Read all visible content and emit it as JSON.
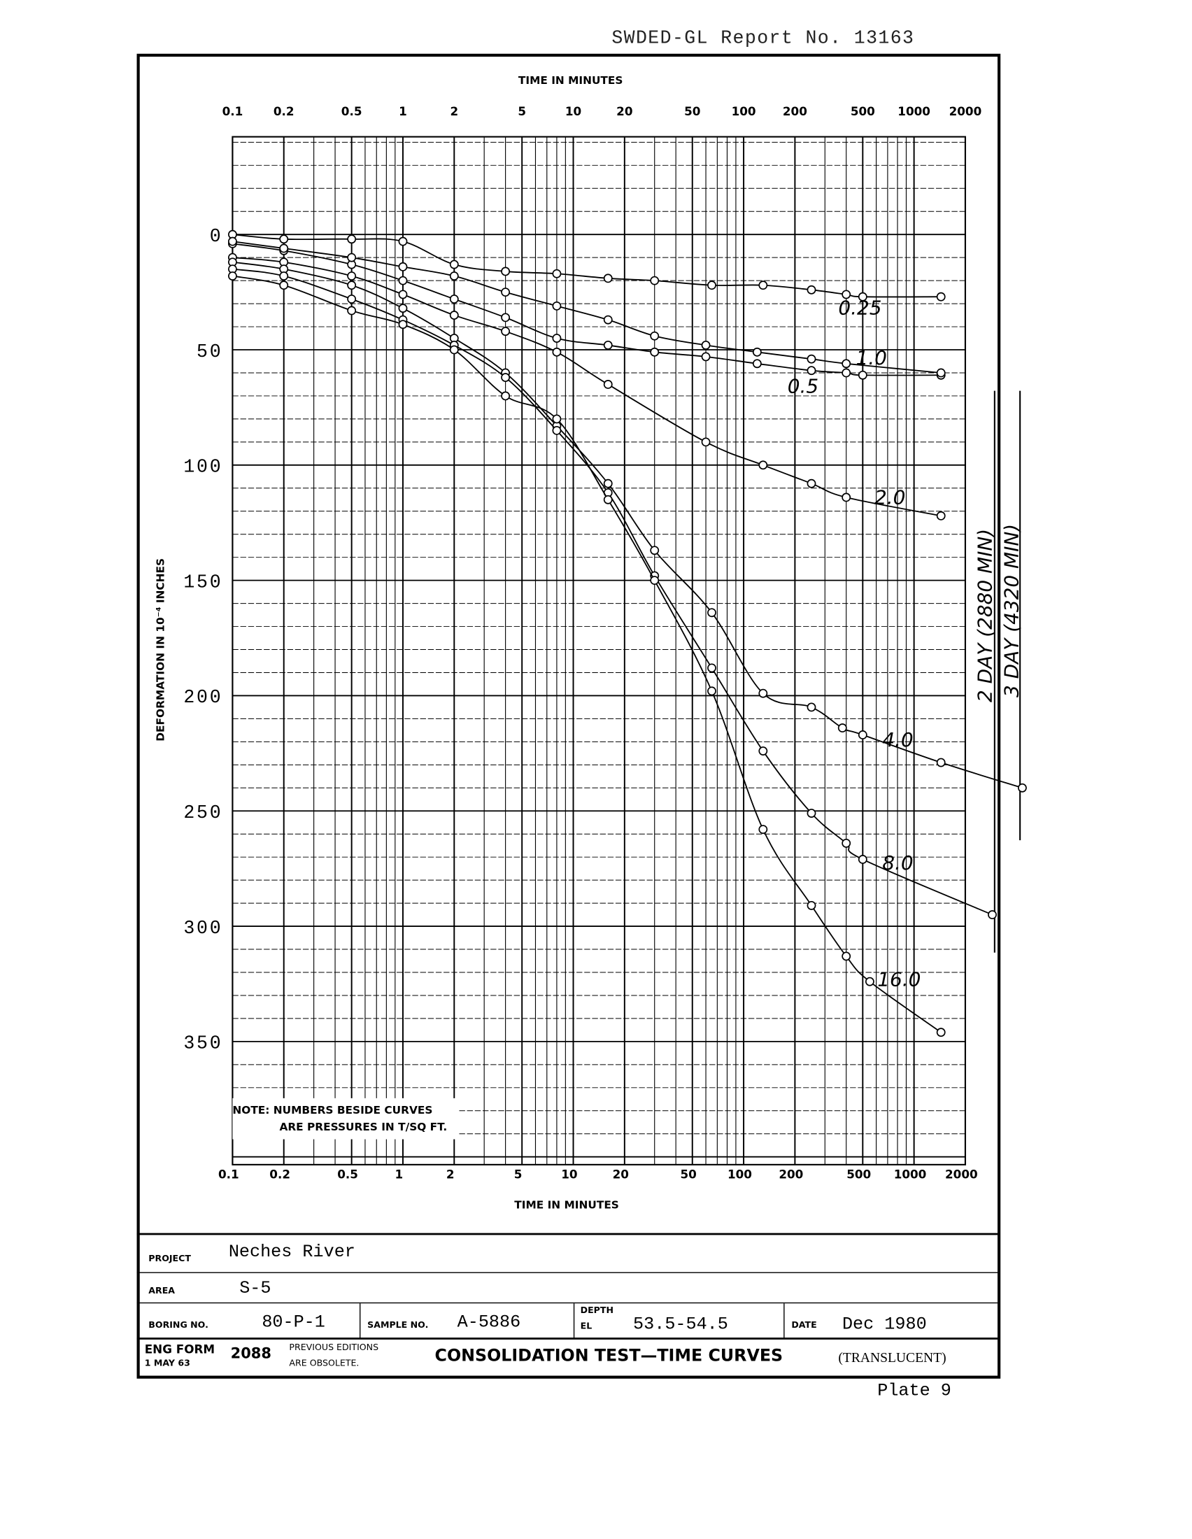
{
  "header": {
    "report": "SWDED-GL Report No. 13163",
    "plate": "Plate 9"
  },
  "form": {
    "project_label": "PROJECT",
    "project": "Neches River",
    "area_label": "AREA",
    "area": "S-5",
    "boring_label": "BORING NO.",
    "boring": "80-P-1",
    "sample_label": "SAMPLE NO.",
    "sample": "A-5886",
    "depth_label": "DEPTH",
    "el_label": "EL",
    "depth": "53.5-54.5",
    "date_label": "DATE",
    "date": "Dec 1980",
    "eng_form": "ENG FORM",
    "form_no": "2088",
    "form_date": "1 MAY 63",
    "prev1": "PREVIOUS EDITIONS",
    "prev2": "ARE OBSOLETE.",
    "title": "CONSOLIDATION TEST—TIME CURVES",
    "translucent": "(TRANSLUCENT)"
  },
  "chart_data": {
    "type": "line",
    "title": "",
    "xlabel": "TIME IN MINUTES",
    "ylabel": "DEFORMATION IN 10⁻⁴ INCHES",
    "xscale": "log",
    "xlim": [
      0.1,
      2000
    ],
    "ylim": [
      0,
      400
    ],
    "y_inverted": true,
    "grid": true,
    "x_ticks": [
      0.1,
      0.2,
      0.5,
      1,
      2,
      5,
      10,
      20,
      50,
      100,
      200,
      500,
      1000,
      2000
    ],
    "x_tick_labels": [
      "0.1",
      "0.2",
      "0.5",
      "1",
      "2",
      "5",
      "10",
      "20",
      "50",
      "100",
      "200",
      "500",
      "1000",
      "2000"
    ],
    "y_ticks": [
      0,
      50,
      100,
      150,
      200,
      250,
      300,
      350
    ],
    "y_tick_labels": [
      "0",
      "50",
      "100",
      "150",
      "200",
      "250",
      "300",
      "350"
    ],
    "note": [
      "NOTE: NUMBERS BESIDE CURVES",
      "ARE PRESSURES IN T/SQ FT."
    ],
    "annotations": [
      "2 DAY (2880 MIN)",
      "3 DAY (4320 MIN)"
    ],
    "series": [
      {
        "name": "0.25",
        "points": [
          [
            0.1,
            0
          ],
          [
            0.2,
            2
          ],
          [
            0.5,
            2
          ],
          [
            1,
            3
          ],
          [
            2,
            13
          ],
          [
            4,
            16
          ],
          [
            8,
            17
          ],
          [
            16,
            19
          ],
          [
            30,
            20
          ],
          [
            65,
            22
          ],
          [
            130,
            22
          ],
          [
            250,
            24
          ],
          [
            400,
            26
          ],
          [
            500,
            27
          ],
          [
            1440,
            27
          ]
        ]
      },
      {
        "name": "0.5",
        "points": [
          [
            0.1,
            4
          ],
          [
            0.2,
            7
          ],
          [
            0.5,
            13
          ],
          [
            1,
            20
          ],
          [
            2,
            28
          ],
          [
            4,
            36
          ],
          [
            8,
            45
          ],
          [
            16,
            48
          ],
          [
            30,
            51
          ],
          [
            60,
            53
          ],
          [
            120,
            56
          ],
          [
            250,
            59
          ],
          [
            400,
            60
          ],
          [
            500,
            61
          ],
          [
            1440,
            61
          ]
        ]
      },
      {
        "name": "1.0",
        "points": [
          [
            0.1,
            3
          ],
          [
            0.2,
            6
          ],
          [
            0.5,
            10
          ],
          [
            1,
            14
          ],
          [
            2,
            18
          ],
          [
            4,
            25
          ],
          [
            8,
            31
          ],
          [
            16,
            37
          ],
          [
            30,
            44
          ],
          [
            60,
            48
          ],
          [
            120,
            51
          ],
          [
            250,
            54
          ],
          [
            400,
            56
          ],
          [
            1440,
            60
          ]
        ]
      },
      {
        "name": "2.0",
        "points": [
          [
            0.1,
            10
          ],
          [
            0.2,
            12
          ],
          [
            0.5,
            18
          ],
          [
            1,
            26
          ],
          [
            2,
            35
          ],
          [
            4,
            42
          ],
          [
            8,
            51
          ],
          [
            16,
            65
          ],
          [
            60,
            90
          ],
          [
            130,
            100
          ],
          [
            250,
            108
          ],
          [
            400,
            114
          ],
          [
            1440,
            122
          ]
        ]
      },
      {
        "name": "4.0",
        "points": [
          [
            0.1,
            12
          ],
          [
            0.2,
            15
          ],
          [
            0.5,
            22
          ],
          [
            1,
            32
          ],
          [
            2,
            45
          ],
          [
            4,
            60
          ],
          [
            8,
            83
          ],
          [
            16,
            108
          ],
          [
            30,
            137
          ],
          [
            65,
            164
          ],
          [
            130,
            199
          ],
          [
            250,
            205
          ],
          [
            380,
            214
          ],
          [
            500,
            217
          ],
          [
            1440,
            229
          ],
          [
            4320,
            240
          ]
        ]
      },
      {
        "name": "8.0",
        "points": [
          [
            0.1,
            15
          ],
          [
            0.2,
            18
          ],
          [
            0.5,
            28
          ],
          [
            1,
            37
          ],
          [
            2,
            48
          ],
          [
            4,
            62
          ],
          [
            8,
            85
          ],
          [
            16,
            112
          ],
          [
            30,
            148
          ],
          [
            65,
            188
          ],
          [
            130,
            224
          ],
          [
            250,
            251
          ],
          [
            400,
            264
          ],
          [
            500,
            271
          ],
          [
            2880,
            295
          ]
        ]
      },
      {
        "name": "16.0",
        "points": [
          [
            0.1,
            18
          ],
          [
            0.2,
            22
          ],
          [
            0.5,
            33
          ],
          [
            1,
            39
          ],
          [
            2,
            50
          ],
          [
            4,
            70
          ],
          [
            8,
            80
          ],
          [
            16,
            115
          ],
          [
            30,
            150
          ],
          [
            65,
            198
          ],
          [
            130,
            258
          ],
          [
            250,
            291
          ],
          [
            400,
            313
          ],
          [
            550,
            324
          ],
          [
            1440,
            346
          ]
        ]
      }
    ]
  }
}
